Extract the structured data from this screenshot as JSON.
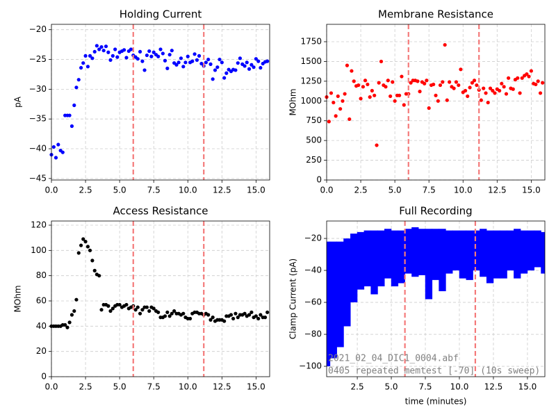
{
  "chart_data": [
    {
      "type": "scatter",
      "title": "Holding Current",
      "ylabel": "pA",
      "color": "#0000ff",
      "grid": true,
      "x": [
        0,
        0.17,
        0.33,
        0.5,
        0.67,
        0.83,
        1,
        1.17,
        1.33,
        1.5,
        1.67,
        1.83,
        2,
        2.17,
        2.33,
        2.5,
        2.67,
        2.83,
        3,
        3.17,
        3.33,
        3.5,
        3.67,
        3.83,
        4,
        4.17,
        4.33,
        4.5,
        4.67,
        4.83,
        5,
        5.17,
        5.33,
        5.5,
        5.67,
        5.83,
        6,
        6.17,
        6.33,
        6.5,
        6.67,
        6.83,
        7,
        7.17,
        7.33,
        7.5,
        7.67,
        7.83,
        8,
        8.17,
        8.33,
        8.5,
        8.67,
        8.83,
        9,
        9.17,
        9.33,
        9.5,
        9.67,
        9.83,
        10,
        10.17,
        10.33,
        10.5,
        10.67,
        10.83,
        11,
        11.17,
        11.33,
        11.5,
        11.67,
        11.83,
        12,
        12.17,
        12.33,
        12.5,
        12.67,
        12.83,
        13,
        13.17,
        13.33,
        13.5,
        13.67,
        13.83,
        14,
        14.17,
        14.33,
        14.5,
        14.67,
        14.83,
        15,
        15.17,
        15.33,
        15.5,
        15.67,
        15.83
      ],
      "values": [
        -41,
        -39.7,
        -41.5,
        -39.3,
        -40.3,
        -40.6,
        -34.4,
        -34.4,
        -34.4,
        -36.2,
        -32.7,
        -29.7,
        -28.4,
        -26.4,
        -25.6,
        -24.4,
        -26.2,
        -24.4,
        -24.8,
        -23.7,
        -22.7,
        -23.3,
        -22.9,
        -23.5,
        -22.8,
        -23.8,
        -25.1,
        -24.4,
        -23.3,
        -24.6,
        -23.8,
        -23.6,
        -23.4,
        -24.7,
        -23.6,
        -23.3,
        -24.3,
        -24.6,
        -24.9,
        -23.7,
        -25.3,
        -26.8,
        -24.3,
        -23.6,
        -24.5,
        -23.8,
        -24.2,
        -24.5,
        -23.3,
        -24,
        -25.2,
        -26.5,
        -24.2,
        -23.5,
        -25.6,
        -25.9,
        -25.5,
        -24.8,
        -26.2,
        -25.5,
        -24.5,
        -25.5,
        -25.3,
        -24.1,
        -25.1,
        -24.4,
        -25.7,
        -26.1,
        -25.5,
        -25,
        -25.8,
        -28.3,
        -26.8,
        -26.3,
        -25,
        -25.5,
        -28.1,
        -27.3,
        -26.7,
        -27,
        -26.7,
        -26.8,
        -25.6,
        -24.8,
        -25.8,
        -26.1,
        -25.5,
        -26.6,
        -25.9,
        -26.3,
        -24.9,
        -25.3,
        -26.4,
        -25.7,
        -25.4,
        -25.3
      ],
      "xlim": [
        0,
        16
      ],
      "ylim": [
        -45.25,
        -19.1
      ],
      "xticks": [
        {
          "value": 0,
          "label": "0.0"
        },
        2.5,
        {
          "value": 5,
          "label": "5.0"
        },
        7.5,
        {
          "value": 10,
          "label": "10.0"
        },
        12.5,
        {
          "value": 15,
          "label": "15.0"
        }
      ],
      "yticks": [
        {
          "value": -45,
          "label": "−45"
        },
        {
          "value": -40,
          "label": "−40"
        },
        {
          "value": -35,
          "label": "−35"
        },
        {
          "value": -30,
          "label": "−30"
        },
        {
          "value": -25,
          "label": "−25"
        },
        {
          "value": -20,
          "label": "−20"
        }
      ],
      "vlines": [
        6.0,
        11.17
      ],
      "vline_color": "#f47a7a"
    },
    {
      "type": "scatter",
      "title": "Membrane Resistance",
      "ylabel": "MOhm",
      "color": "#ff0000",
      "grid": true,
      "x": [
        0,
        0.17,
        0.33,
        0.5,
        0.67,
        0.83,
        1,
        1.17,
        1.33,
        1.5,
        1.67,
        1.83,
        2,
        2.17,
        2.33,
        2.5,
        2.67,
        2.83,
        3,
        3.17,
        3.33,
        3.5,
        3.67,
        3.83,
        4,
        4.17,
        4.33,
        4.5,
        4.67,
        4.83,
        5,
        5.17,
        5.33,
        5.5,
        5.67,
        5.83,
        6,
        6.17,
        6.33,
        6.5,
        6.67,
        6.83,
        7,
        7.17,
        7.33,
        7.5,
        7.67,
        7.83,
        8,
        8.17,
        8.33,
        8.5,
        8.67,
        8.83,
        9,
        9.17,
        9.33,
        9.5,
        9.67,
        9.83,
        10,
        10.17,
        10.33,
        10.5,
        10.67,
        10.83,
        11,
        11.17,
        11.33,
        11.5,
        11.67,
        11.83,
        12,
        12.17,
        12.33,
        12.5,
        12.67,
        12.83,
        13,
        13.17,
        13.33,
        13.5,
        13.67,
        13.83,
        14,
        14.17,
        14.33,
        14.5,
        14.67,
        14.83,
        15,
        15.17,
        15.33,
        15.5,
        15.67,
        15.83
      ],
      "values": [
        1050,
        740,
        1100,
        980,
        810,
        1060,
        900,
        1000,
        1090,
        1450,
        770,
        1380,
        1250,
        1190,
        1200,
        1030,
        1180,
        1260,
        1210,
        1050,
        1130,
        1070,
        440,
        1230,
        1500,
        1200,
        1180,
        1260,
        1060,
        1240,
        1000,
        1070,
        1070,
        1310,
        950,
        1090,
        1090,
        1230,
        1260,
        1260,
        1250,
        1120,
        1240,
        1220,
        1260,
        910,
        1200,
        1210,
        1070,
        1000,
        1200,
        1240,
        1710,
        1010,
        1240,
        1180,
        1160,
        1240,
        1200,
        1400,
        1110,
        1130,
        1060,
        1170,
        1230,
        1260,
        1200,
        1140,
        1010,
        1160,
        1100,
        980,
        1160,
        1130,
        1100,
        1150,
        1130,
        1220,
        1180,
        1090,
        1290,
        1160,
        1150,
        1270,
        1290,
        1100,
        1290,
        1320,
        1340,
        1310,
        1380,
        1220,
        1210,
        1250,
        1100,
        1230
      ],
      "xlim": [
        0,
        16
      ],
      "ylim": [
        0,
        1970
      ],
      "xticks": [
        {
          "value": 0,
          "label": "0.0"
        },
        2.5,
        {
          "value": 5,
          "label": "5.0"
        },
        7.5,
        {
          "value": 10,
          "label": "10.0"
        },
        12.5,
        {
          "value": 15,
          "label": "15.0"
        }
      ],
      "yticks": [
        0,
        250,
        500,
        750,
        1000,
        1250,
        1500,
        1750
      ],
      "vlines": [
        6.0,
        11.17
      ],
      "vline_color": "#f47a7a"
    },
    {
      "type": "scatter",
      "title": "Access Resistance",
      "ylabel": "MOhm",
      "color": "#000000",
      "grid": true,
      "x": [
        0,
        0.17,
        0.33,
        0.5,
        0.67,
        0.83,
        1,
        1.17,
        1.33,
        1.5,
        1.67,
        1.83,
        2,
        2.17,
        2.33,
        2.5,
        2.67,
        2.83,
        3,
        3.17,
        3.33,
        3.5,
        3.67,
        3.83,
        4,
        4.17,
        4.33,
        4.5,
        4.67,
        4.83,
        5,
        5.17,
        5.33,
        5.5,
        5.67,
        5.83,
        6,
        6.17,
        6.33,
        6.5,
        6.67,
        6.83,
        7,
        7.17,
        7.33,
        7.5,
        7.67,
        7.83,
        8,
        8.17,
        8.33,
        8.5,
        8.67,
        8.83,
        9,
        9.17,
        9.33,
        9.5,
        9.67,
        9.83,
        10,
        10.17,
        10.33,
        10.5,
        10.67,
        10.83,
        11,
        11.17,
        11.33,
        11.5,
        11.67,
        11.83,
        12,
        12.17,
        12.33,
        12.5,
        12.67,
        12.83,
        13,
        13.17,
        13.33,
        13.5,
        13.67,
        13.83,
        14,
        14.17,
        14.33,
        14.5,
        14.67,
        14.83,
        15,
        15.17,
        15.33,
        15.5,
        15.67,
        15.83
      ],
      "values": [
        40,
        40,
        40,
        40,
        40,
        41,
        41,
        39,
        43,
        49,
        52,
        61,
        98,
        104,
        109,
        107,
        103,
        100,
        92,
        84,
        81,
        80,
        53,
        57,
        57,
        56,
        52,
        54,
        56,
        57,
        57,
        55,
        56,
        57,
        54,
        55,
        56,
        53,
        55,
        50,
        53,
        55,
        55,
        52,
        55,
        54,
        52,
        51,
        47,
        47,
        48,
        51,
        48,
        50,
        52,
        50,
        50,
        49,
        50,
        47,
        46,
        46,
        50,
        51,
        51,
        50,
        50,
        49,
        50,
        49,
        45,
        47,
        44,
        45,
        45,
        45,
        44,
        48,
        48,
        49,
        46,
        50,
        47,
        49,
        49,
        50,
        48,
        49,
        51,
        47,
        48,
        46,
        49,
        47,
        47,
        51
      ],
      "xlim": [
        0,
        16
      ],
      "ylim": [
        0,
        123.3
      ],
      "xticks": [
        {
          "value": 0,
          "label": "0.0"
        },
        2.5,
        {
          "value": 5,
          "label": "5.0"
        },
        7.5,
        {
          "value": 10,
          "label": "10.0"
        },
        12.5,
        {
          "value": 15,
          "label": "15.0"
        }
      ],
      "yticks": [
        0,
        20,
        40,
        60,
        80,
        100,
        120
      ],
      "vlines": [
        6.0,
        11.17
      ],
      "vline_color": "#f47a7a"
    },
    {
      "type": "range",
      "title": "Full Recording",
      "ylabel": "Clamp Current (pA)",
      "xlabel": "time (minutes)",
      "color": "#0000ff",
      "grid": true,
      "x": [
        0.25,
        0.75,
        1.25,
        1.75,
        2.25,
        2.75,
        3.25,
        3.75,
        4.25,
        4.75,
        5.25,
        5.75,
        6.25,
        6.75,
        7.25,
        7.75,
        8.25,
        8.75,
        9.25,
        9.75,
        10.25,
        10.75,
        11.25,
        11.75,
        12.25,
        12.75,
        13.25,
        13.75,
        14.25,
        14.75,
        15.25,
        15.75,
        16.25
      ],
      "upper": [
        -22,
        -22,
        -22,
        -20,
        -17,
        -16,
        -15,
        -15,
        -15,
        -14,
        -15,
        -15,
        -14,
        -13,
        -14,
        -14,
        -14,
        -14,
        -15,
        -15,
        -15,
        -15,
        -15,
        -14,
        -15,
        -15,
        -15,
        -15,
        -14,
        -15,
        -15,
        -15,
        -16
      ],
      "lower": [
        -100,
        -95,
        -88,
        -75,
        -60,
        -52,
        -50,
        -55,
        -50,
        -45,
        -50,
        -48,
        -42,
        -44,
        -43,
        -58,
        -46,
        -53,
        -42,
        -40,
        -45,
        -46,
        -40,
        -44,
        -48,
        -45,
        -45,
        -40,
        -45,
        -42,
        -40,
        -38,
        -42
      ],
      "xlim": [
        0.25,
        16.28
      ],
      "ylim": [
        -106.5,
        -9.1
      ],
      "xticks": [
        2.5,
        {
          "value": 5,
          "label": "5.0"
        },
        7.5,
        {
          "value": 10,
          "label": "10.0"
        },
        12.5,
        {
          "value": 15,
          "label": "15.0"
        }
      ],
      "yticks": [
        {
          "value": -100,
          "label": "−100"
        },
        {
          "value": -80,
          "label": "−80"
        },
        {
          "value": -60,
          "label": "−60"
        },
        {
          "value": -40,
          "label": "−40"
        },
        {
          "value": -20,
          "label": "−20"
        }
      ],
      "vlines": [
        6.0,
        11.17
      ],
      "vline_color": "#f47a7a",
      "annotations": [
        "2021_02_04_DIC1_0004.abf",
        "0405 repeated memtest [-70] (10s sweep)"
      ]
    }
  ]
}
